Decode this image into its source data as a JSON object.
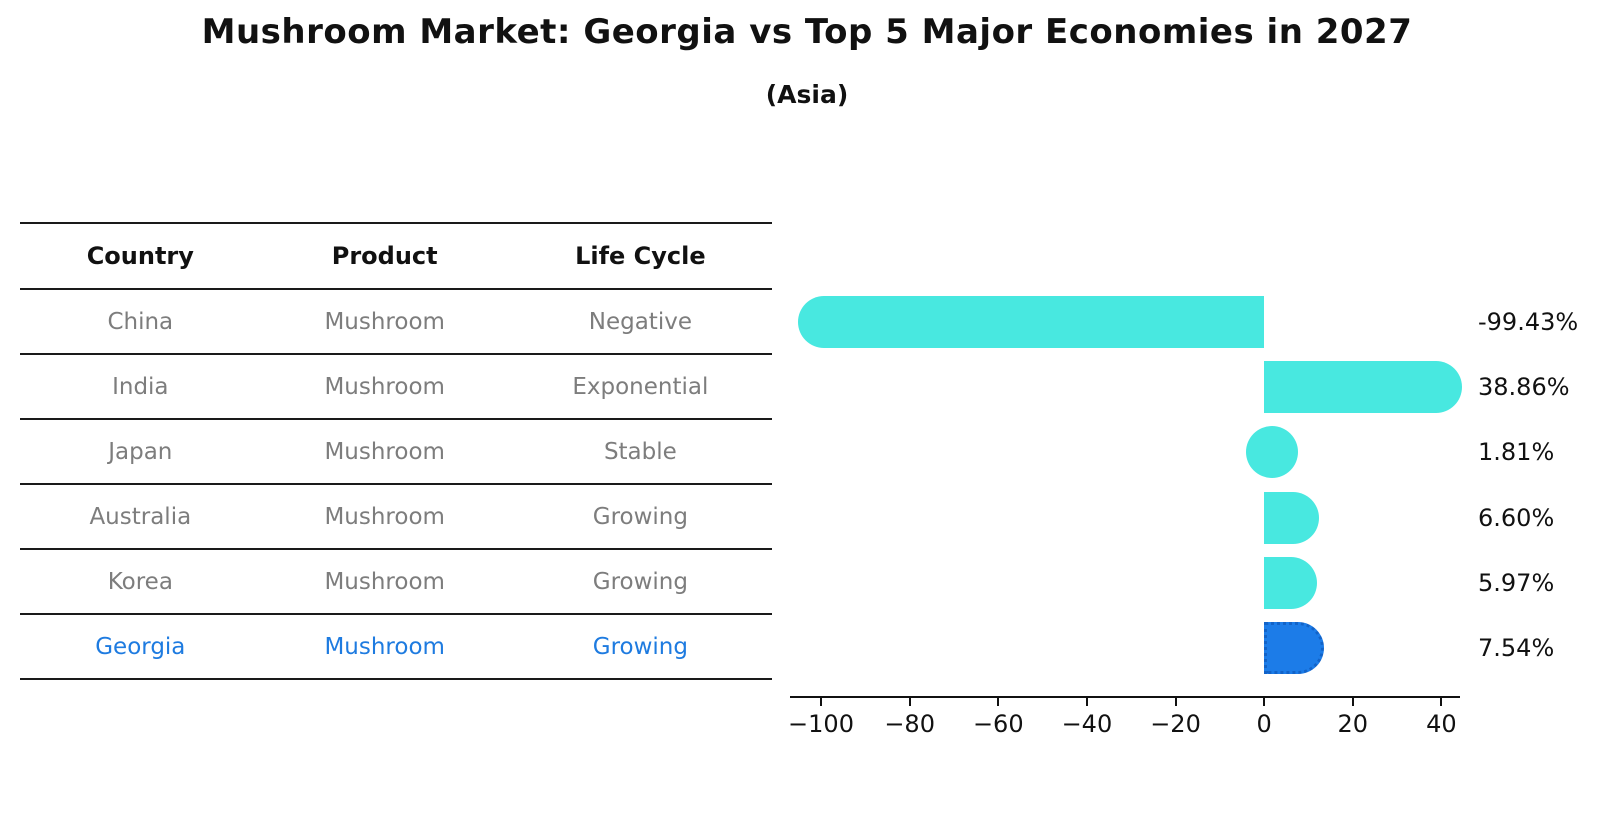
{
  "title": "Mushroom Market: Georgia vs Top 5 Major Economies in 2027",
  "subtitle": "(Asia)",
  "table": {
    "headers": [
      "Country",
      "Product",
      "Life Cycle"
    ],
    "rows": [
      {
        "country": "China",
        "product": "Mushroom",
        "life_cycle": "Negative",
        "highlight": false
      },
      {
        "country": "India",
        "product": "Mushroom",
        "life_cycle": "Exponential",
        "highlight": false
      },
      {
        "country": "Japan",
        "product": "Mushroom",
        "life_cycle": "Stable",
        "highlight": false
      },
      {
        "country": "Australia",
        "product": "Mushroom",
        "life_cycle": "Growing",
        "highlight": false
      },
      {
        "country": "Korea",
        "product": "Mushroom",
        "life_cycle": "Growing",
        "highlight": false
      },
      {
        "country": "Georgia",
        "product": "Mushroom",
        "life_cycle": "Growing",
        "highlight": true
      }
    ]
  },
  "chart_data": {
    "type": "bar",
    "orientation": "horizontal",
    "title": "Mushroom Market: Georgia vs Top 5 Major Economies in 2027 (Asia)",
    "categories": [
      "China",
      "India",
      "Japan",
      "Australia",
      "Korea",
      "Georgia"
    ],
    "values": [
      -99.43,
      38.86,
      1.81,
      6.6,
      5.97,
      7.54
    ],
    "value_labels": [
      "-99.43%",
      "38.86%",
      "1.81%",
      "6.60%",
      "5.97%",
      "7.54%"
    ],
    "x_ticks": [
      -100,
      -80,
      -60,
      -40,
      -20,
      0,
      20,
      40
    ],
    "xlim": [
      -107,
      44.2
    ],
    "grid": false,
    "legend": "none",
    "bar_color": "#48e8e0",
    "highlight_index": 5,
    "highlight_color": "#1c7ce8",
    "highlight_edge_color": "#1263c8",
    "highlight_text_color": "#1e7be0"
  }
}
